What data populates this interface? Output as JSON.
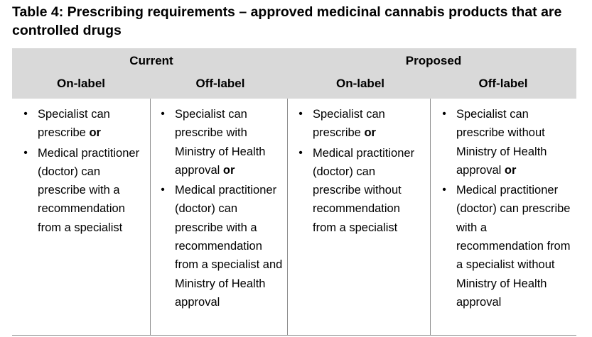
{
  "title": "Table 4: Prescribing requirements – approved medicinal cannabis products that are controlled drugs",
  "header": {
    "groups": [
      "Current",
      "Proposed"
    ],
    "columns": [
      "On-label",
      "Off-label",
      "On-label",
      "Off-label"
    ]
  },
  "bullet_glyph": "•",
  "conjunction": "or",
  "cells": [
    {
      "items": [
        {
          "text": "Specialist can prescribe",
          "suffix": "or"
        },
        {
          "text": "Medical practitioner (doctor) can prescribe with a recommendation from a specialist",
          "suffix": ""
        }
      ]
    },
    {
      "items": [
        {
          "text": "Specialist can prescribe with Ministry of Health approval",
          "suffix": "or"
        },
        {
          "text": "Medical practitioner (doctor) can prescribe with a recommendation from a specialist and Ministry of Health approval",
          "suffix": ""
        }
      ]
    },
    {
      "items": [
        {
          "text": "Specialist can prescribe",
          "suffix": "or"
        },
        {
          "text": "Medical practitioner (doctor) can prescribe without recommendation from a specialist",
          "suffix": ""
        }
      ]
    },
    {
      "items": [
        {
          "text": "Specialist can prescribe without Ministry of Health approval",
          "suffix": "or"
        },
        {
          "text": "Medical practitioner (doctor) can prescribe with a recommendation from a specialist without Ministry of Health approval",
          "suffix": ""
        }
      ]
    }
  ]
}
